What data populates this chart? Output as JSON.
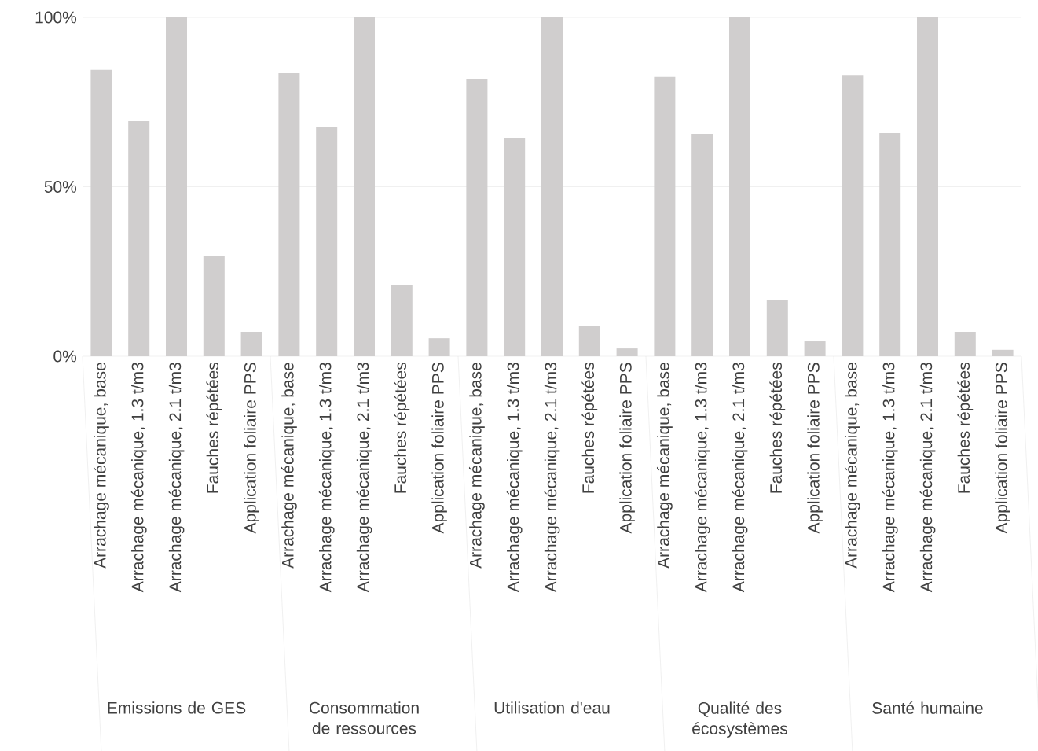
{
  "chart_data": {
    "type": "bar",
    "color": "#d0cece",
    "grid": "y",
    "categories": [
      "Arrachage mécanique, base",
      "Arrachage mécanique, 1.3 t/m3",
      "Arrachage mécanique, 2.1 t/m3",
      "Fauches répétées",
      "Application foliaire PPS",
      "Arrachage mécanique, base",
      "Arrachage mécanique, 1.3 t/m3",
      "Arrachage mécanique, 2.1 t/m3",
      "Fauches répétées",
      "Application foliaire PPS",
      "Arrachage mécanique, base",
      "Arrachage mécanique, 1.3 t/m3",
      "Arrachage mécanique, 2.1 t/m3",
      "Fauches répétées",
      "Application foliaire PPS",
      "Arrachage mécanique, base",
      "Arrachage mécanique, 1.3 t/m3",
      "Arrachage mécanique, 2.1 t/m3",
      "Fauches répétées",
      "Application foliaire PPS",
      "Arrachage mécanique, base",
      "Arrachage mécanique, 1.3 t/m3",
      "Arrachage mécanique, 2.1 t/m3",
      "Fauches répétées",
      "Application foliaire PPS"
    ],
    "values": [
      84.5,
      69.4,
      100,
      29.5,
      7.2,
      83.5,
      67.5,
      100,
      20.9,
      5.3,
      81.9,
      64.3,
      100,
      8.8,
      2.3,
      82.4,
      65.4,
      100,
      16.5,
      4.4,
      82.8,
      65.9,
      100,
      7.2,
      1.9
    ],
    "ylim": [
      0,
      100
    ],
    "yticks": [
      {
        "value": 0,
        "label": "0%"
      },
      {
        "value": 50,
        "label": "50%"
      },
      {
        "value": 100,
        "label": "100%"
      }
    ],
    "annotations": [
      "Emissions de GES",
      "Consommation de ressources",
      "Utilisation d'eau",
      "Qualité des écosystèmes",
      "Santé humaine"
    ]
  }
}
